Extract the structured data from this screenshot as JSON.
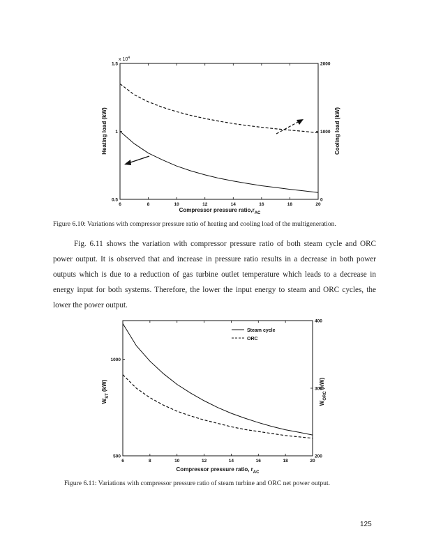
{
  "figure1": {
    "caption": "Figure 6.10: Variations with compressor pressure ratio of heating and cooling load of the multigeneration.",
    "chart_data": {
      "type": "line",
      "xlabel_main": "Compressor pressure ratio,r",
      "xlabel_sub": "AC",
      "ylabel_left": "Heating load (kW)",
      "ylabel_right": "Cooling load (kW)",
      "exponent_label": "x 10",
      "exponent_power": "4",
      "xlim": [
        6,
        20
      ],
      "x_ticks": [
        "6",
        "8",
        "10",
        "12",
        "14",
        "16",
        "18",
        "20"
      ],
      "ylim_left": [
        0.5,
        1.5
      ],
      "y_left_ticks": [
        "0.5",
        "1",
        "1.5"
      ],
      "ylim_right": [
        0,
        2000
      ],
      "y_right_ticks": [
        "0",
        "1000",
        "2000"
      ],
      "grid": false,
      "series": [
        {
          "axis": "left",
          "style": "solid",
          "x": [
            6,
            7,
            8,
            9,
            10,
            11,
            12,
            13,
            14,
            15,
            16,
            17,
            18,
            19,
            20
          ],
          "y": [
            1.0,
            0.91,
            0.84,
            0.79,
            0.745,
            0.71,
            0.68,
            0.655,
            0.635,
            0.617,
            0.6,
            0.587,
            0.574,
            0.562,
            0.55
          ]
        },
        {
          "axis": "right",
          "style": "dashed",
          "x": [
            6,
            7,
            8,
            9,
            10,
            11,
            12,
            13,
            14,
            15,
            16,
            17,
            18,
            19,
            20
          ],
          "y": [
            1700,
            1540,
            1435,
            1355,
            1290,
            1235,
            1190,
            1150,
            1115,
            1085,
            1060,
            1038,
            1018,
            1000,
            980
          ]
        }
      ]
    }
  },
  "paragraph": "Fig. 6.11 shows the variation with compressor pressure ratio of both steam cycle and ORC power output. It is observed that and increase in pressure ratio results in a decrease in both power outputs which is due to a reduction of gas turbine outlet temperature which leads to a decrease in energy input for both systems. Therefore, the lower the input energy to steam and ORC cycles, the lower the power output.",
  "figure2": {
    "caption": "Figure 6.11: Variations with compressor pressure ratio of steam turbine and ORC net power output.",
    "chart_data": {
      "type": "line",
      "xlabel_main": "Compressor pressure ratio, r",
      "xlabel_sub": "AC",
      "ylabel_left_main": "W",
      "ylabel_left_sub": "ST",
      "ylabel_left_unit": " (kW)",
      "ylabel_right_main": "W",
      "ylabel_right_sub": "ORC",
      "ylabel_right_unit": " (kW)",
      "xlim": [
        6,
        20
      ],
      "x_ticks": [
        "6",
        "8",
        "10",
        "12",
        "14",
        "16",
        "18",
        "20"
      ],
      "ylim_left": [
        500,
        1200
      ],
      "y_left_ticks": [
        "500",
        "1000"
      ],
      "ylim_right": [
        200,
        400
      ],
      "y_right_ticks": [
        "200",
        "300",
        "400"
      ],
      "grid": false,
      "legend_position": "top-right",
      "series": [
        {
          "name": "Steam cycle",
          "axis": "left",
          "style": "solid",
          "x": [
            6,
            7,
            8,
            9,
            10,
            11,
            12,
            13,
            14,
            15,
            16,
            17,
            18,
            19,
            20
          ],
          "y": [
            1185,
            1070,
            990,
            925,
            870,
            825,
            785,
            750,
            720,
            695,
            672,
            652,
            635,
            622,
            608
          ]
        },
        {
          "name": "ORC",
          "axis": "right",
          "style": "dashed",
          "x": [
            6,
            7,
            8,
            9,
            10,
            11,
            12,
            13,
            14,
            15,
            16,
            17,
            18,
            19,
            20
          ],
          "y": [
            320,
            300,
            286,
            275,
            266,
            259,
            253,
            248,
            243,
            239,
            236,
            233,
            230,
            228,
            226
          ]
        }
      ]
    }
  },
  "page_number": "125"
}
